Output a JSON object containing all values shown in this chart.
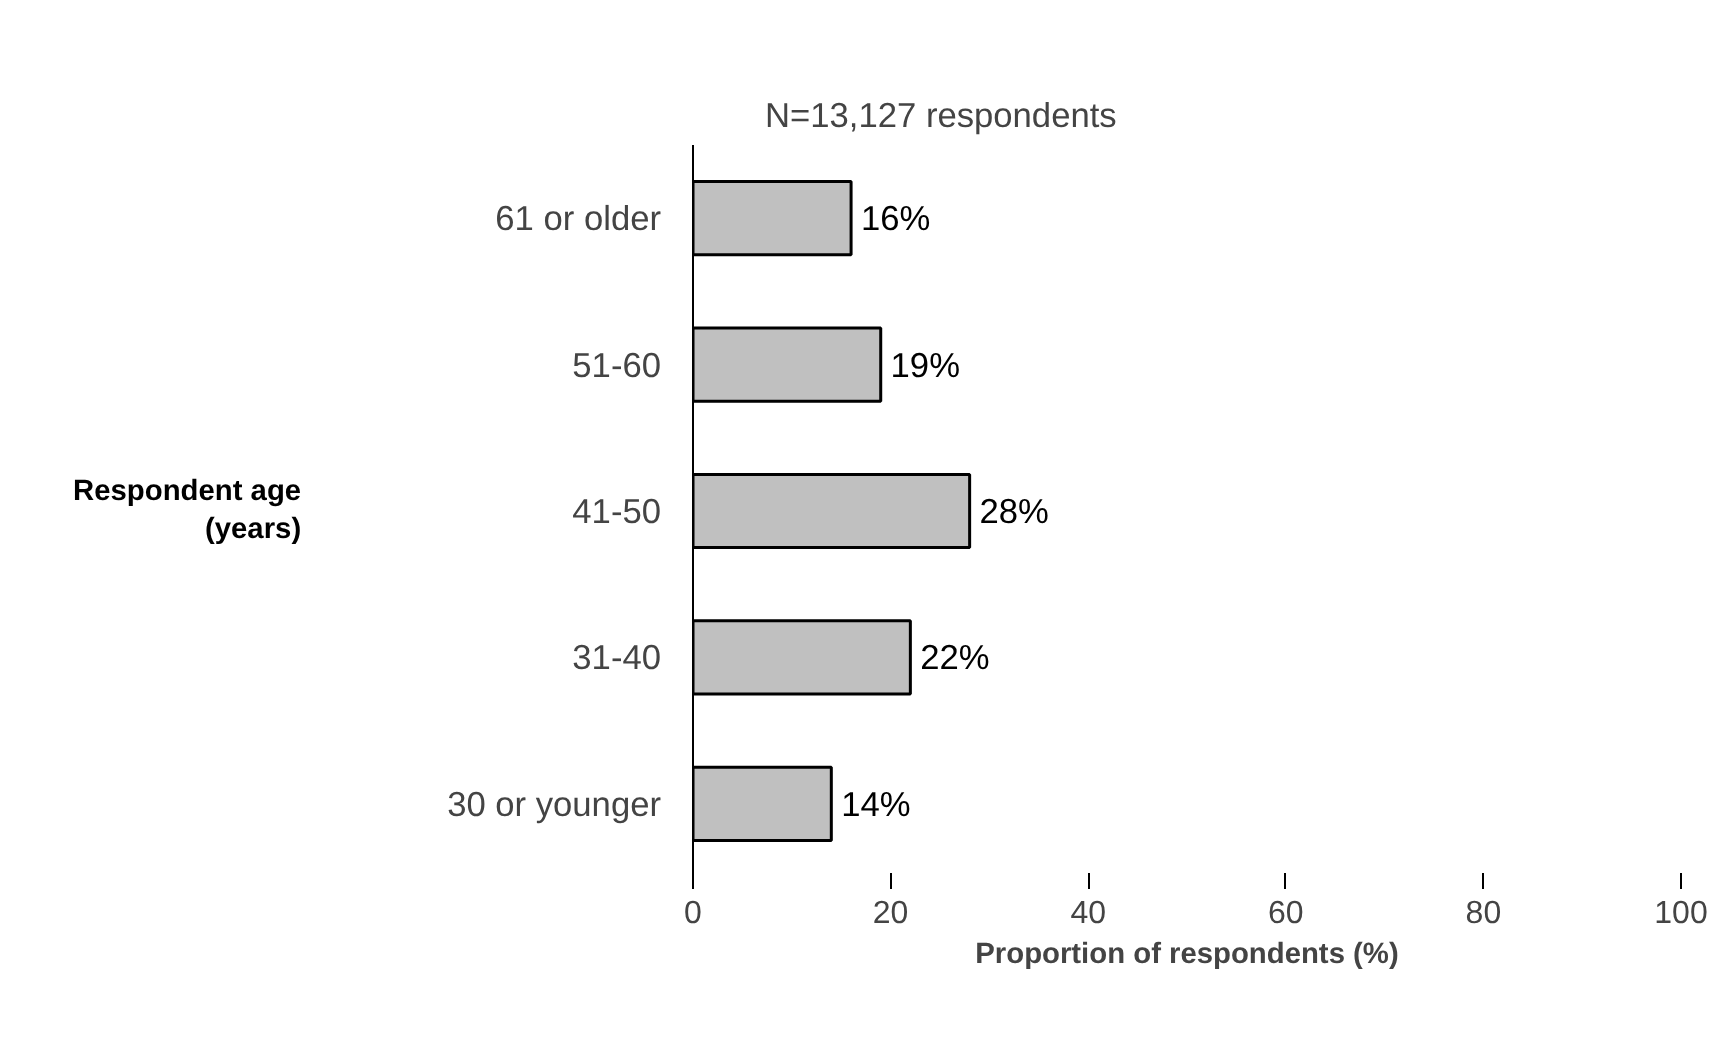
{
  "chart_data": {
    "type": "bar",
    "orientation": "horizontal",
    "title": "N=13,127 respondents",
    "xlabel": "Proportion of respondents (%)",
    "ylabel": "Respondent age\n(years)",
    "categories": [
      "61 or older",
      "51-60",
      "41-50",
      "31-40",
      "30 or younger"
    ],
    "values": [
      16,
      19,
      28,
      22,
      14
    ],
    "value_labels": [
      "16%",
      "19%",
      "28%",
      "22%",
      "14%"
    ],
    "color": "#c0c0c0",
    "xlim": [
      0,
      100
    ],
    "xticks": [
      0,
      20,
      40,
      60,
      80,
      100
    ],
    "grid": false
  }
}
